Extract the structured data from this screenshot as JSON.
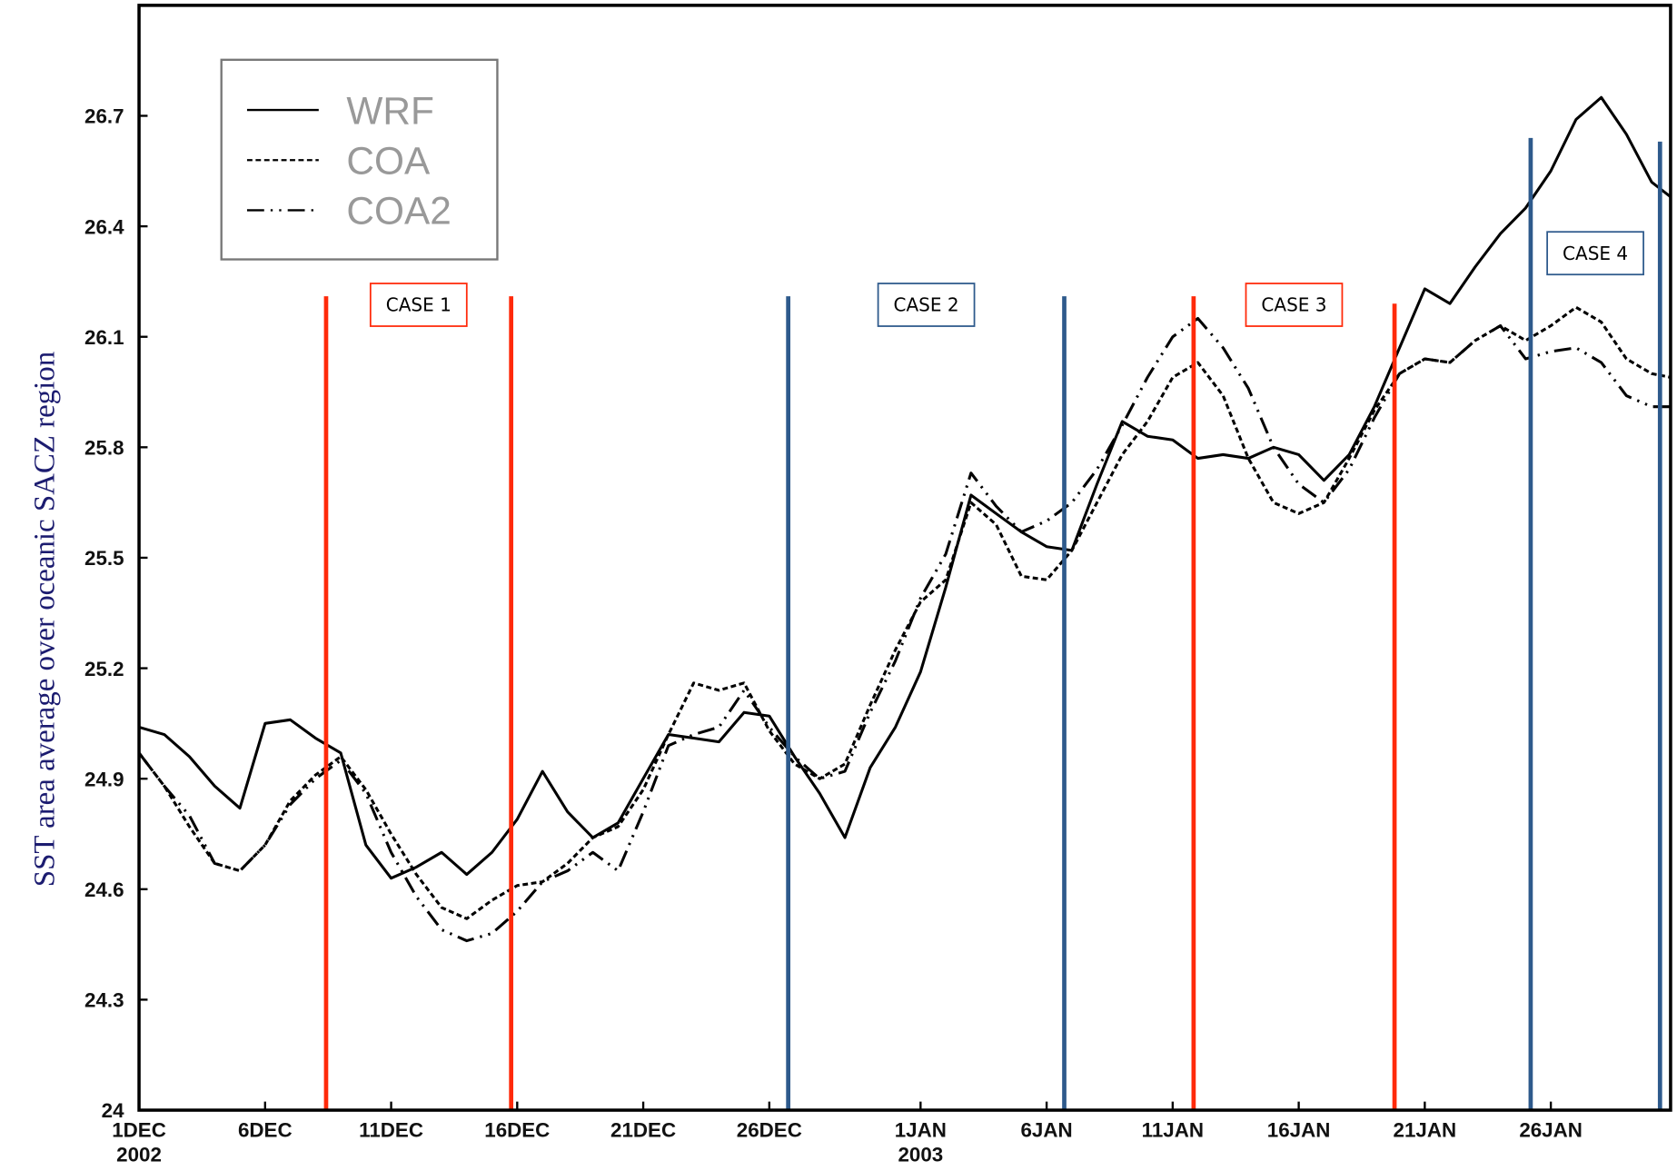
{
  "chart_data": {
    "type": "line",
    "y_label": "SST area average over oceanic SACZ region",
    "x": [
      0,
      1,
      2,
      3,
      4,
      5,
      6,
      7,
      8,
      9,
      10,
      11,
      12,
      13,
      14,
      15,
      16,
      17,
      18,
      19,
      20,
      21,
      22,
      23,
      24,
      25,
      26,
      27,
      28,
      29,
      30,
      31,
      32,
      33,
      34,
      35,
      36,
      37,
      38,
      39,
      40,
      41,
      42,
      43,
      44,
      45,
      46,
      47,
      48,
      49,
      50,
      51,
      52,
      53,
      54,
      55,
      56,
      57,
      58,
      59,
      60,
      60.75
    ],
    "xlim": [
      0,
      60.75
    ],
    "xticks": [
      {
        "value": 0,
        "label": "1DEC"
      },
      {
        "value": 5,
        "label": "6DEC"
      },
      {
        "value": 10,
        "label": "11DEC"
      },
      {
        "value": 15,
        "label": "16DEC"
      },
      {
        "value": 20,
        "label": "21DEC"
      },
      {
        "value": 25,
        "label": "26DEC"
      },
      {
        "value": 31,
        "label": "1JAN"
      },
      {
        "value": 36,
        "label": "6JAN"
      },
      {
        "value": 41,
        "label": "11JAN"
      },
      {
        "value": 46,
        "label": "16JAN"
      },
      {
        "value": 51,
        "label": "21JAN"
      },
      {
        "value": 56,
        "label": "26JAN"
      }
    ],
    "x_year_labels": [
      {
        "value": 0,
        "label": "2002"
      },
      {
        "value": 31,
        "label": "2003"
      }
    ],
    "ylim": [
      24,
      27.0
    ],
    "yticks": [
      24,
      24.3,
      24.6,
      24.9,
      25.2,
      25.5,
      25.8,
      26.1,
      26.4,
      26.7
    ],
    "series": [
      {
        "name": "WRF",
        "color": "#000000",
        "style": "solid",
        "values": [
          25.04,
          25.02,
          24.96,
          24.88,
          24.82,
          25.05,
          25.06,
          25.01,
          24.97,
          24.72,
          24.63,
          24.66,
          24.7,
          24.64,
          24.7,
          24.79,
          24.92,
          24.81,
          24.74,
          24.78,
          24.9,
          25.02,
          25.01,
          25.0,
          25.08,
          25.07,
          24.96,
          24.86,
          24.74,
          24.93,
          25.04,
          25.19,
          25.42,
          25.67,
          25.62,
          25.57,
          25.53,
          25.52,
          25.7,
          25.87,
          25.83,
          25.82,
          25.77,
          25.78,
          25.77,
          25.8,
          25.78,
          25.71,
          25.78,
          25.91,
          26.07,
          26.23,
          26.19,
          26.29,
          26.38,
          26.45,
          26.55,
          26.69,
          26.75,
          26.65,
          26.52,
          26.48
        ]
      },
      {
        "name": "COA",
        "color": "#000000",
        "style": "dashed",
        "values": [
          24.97,
          24.88,
          24.77,
          24.67,
          24.65,
          24.72,
          24.84,
          24.91,
          24.96,
          24.87,
          24.75,
          24.64,
          24.55,
          24.52,
          24.57,
          24.61,
          24.62,
          24.67,
          24.74,
          24.77,
          24.87,
          25.02,
          25.16,
          25.14,
          25.16,
          25.03,
          24.94,
          24.9,
          24.94,
          25.1,
          25.25,
          25.38,
          25.44,
          25.65,
          25.59,
          25.45,
          25.44,
          25.52,
          25.65,
          25.78,
          25.87,
          25.99,
          26.03,
          25.94,
          25.77,
          25.65,
          25.62,
          25.65,
          25.77,
          25.9,
          26.0,
          26.04,
          26.03,
          26.09,
          26.13,
          26.09,
          26.13,
          26.18,
          26.14,
          26.04,
          26.0,
          25.99
        ]
      },
      {
        "name": "COA2",
        "color": "#000000",
        "style": "dashdot",
        "values": [
          24.97,
          24.88,
          24.8,
          24.67,
          24.65,
          24.72,
          24.83,
          24.9,
          24.95,
          24.86,
          24.7,
          24.58,
          24.49,
          24.46,
          24.48,
          24.54,
          24.62,
          24.65,
          24.7,
          24.65,
          24.81,
          24.99,
          25.02,
          25.04,
          25.14,
          25.04,
          24.96,
          24.9,
          24.92,
          25.08,
          25.22,
          25.39,
          25.51,
          25.73,
          25.64,
          25.57,
          25.6,
          25.65,
          25.74,
          25.86,
          25.99,
          26.1,
          26.15,
          26.07,
          25.96,
          25.8,
          25.7,
          25.65,
          25.74,
          25.88,
          26.0,
          26.04,
          26.03,
          26.09,
          26.13,
          26.04,
          26.06,
          26.07,
          26.03,
          25.94,
          25.91,
          25.91
        ]
      }
    ],
    "markers": [
      {
        "x": 7.42,
        "top": 26.21,
        "color": "#ff2a0a"
      },
      {
        "x": 14.76,
        "top": 26.21,
        "color": "#ff2a0a"
      },
      {
        "x": 25.75,
        "top": 26.21,
        "color": "#2e5a8c"
      },
      {
        "x": 36.7,
        "top": 26.21,
        "color": "#2e5a8c"
      },
      {
        "x": 41.83,
        "top": 26.21,
        "color": "#ff2a0a"
      },
      {
        "x": 49.8,
        "top": 26.19,
        "color": "#ff2a0a"
      },
      {
        "x": 55.2,
        "top": 26.64,
        "color": "#2e5a8c"
      },
      {
        "x": 60.33,
        "top": 26.63,
        "color": "#2e5a8c"
      }
    ],
    "cases": [
      {
        "label": "CASE 1",
        "from": 0,
        "to": 1,
        "color": "#ff2a0a"
      },
      {
        "label": "CASE 2",
        "from": 2,
        "to": 3,
        "color": "#2e5a8c"
      },
      {
        "label": "CASE 3",
        "from": 4,
        "to": 5,
        "color": "#ff2a0a"
      },
      {
        "label": "CASE 4",
        "from": 6,
        "to": 7,
        "color": "#2e5a8c"
      }
    ],
    "legend": "top-left"
  }
}
